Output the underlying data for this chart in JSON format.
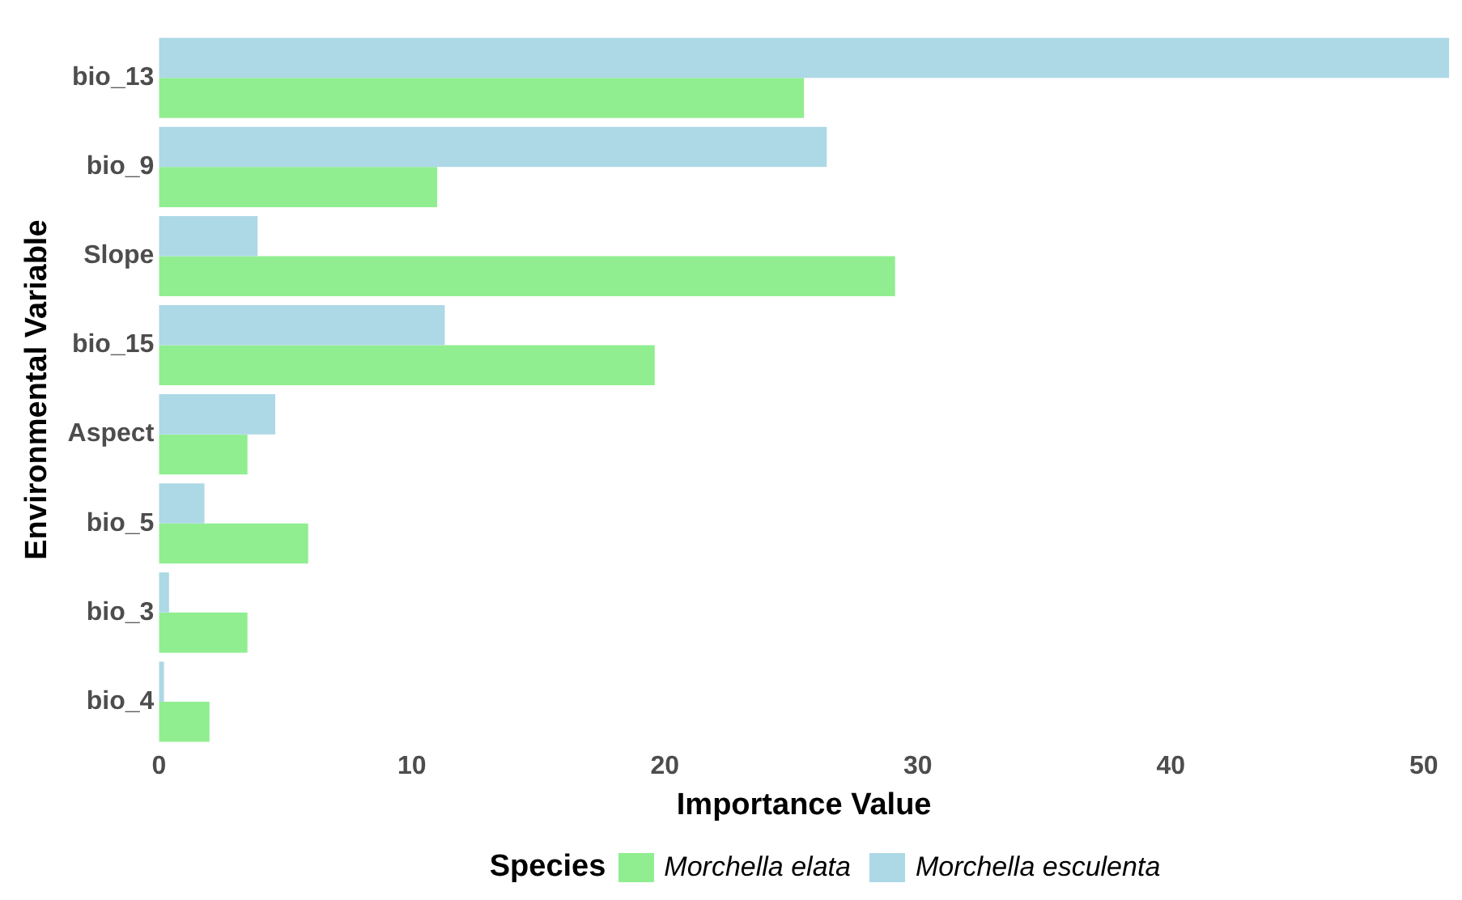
{
  "chart_data": {
    "type": "bar",
    "orientation": "horizontal",
    "xlabel": "Importance Value",
    "ylabel": "Environmental Variable",
    "legend_title": "Species",
    "legend": "bottom",
    "grid": false,
    "categories": [
      "bio_13",
      "bio_9",
      "Slope",
      "bio_15",
      "Aspect",
      "bio_5",
      "bio_3",
      "bio_4"
    ],
    "xlim": [
      0,
      51
    ],
    "xticks": [
      0,
      10,
      20,
      30,
      40,
      50
    ],
    "series": [
      {
        "name": "Morchella elata",
        "color": "#90ee90",
        "values": [
          25.5,
          11.0,
          29.1,
          19.6,
          3.5,
          5.9,
          3.5,
          2.0
        ]
      },
      {
        "name": "Morchella esculenta",
        "color": "#add8e6",
        "values": [
          51,
          26.4,
          3.9,
          11.3,
          4.6,
          1.8,
          0.4,
          0.2
        ]
      }
    ]
  }
}
